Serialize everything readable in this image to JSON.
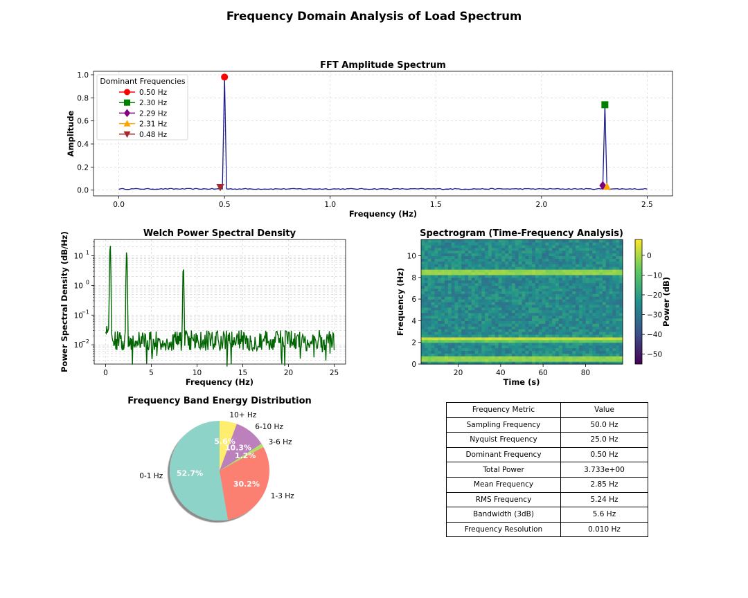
{
  "suptitle": "Frequency Domain Analysis of Load Spectrum",
  "colors": {
    "fft_line": "#1a1a8c",
    "psd_line": "#006400",
    "pie": [
      "#8dd3c7",
      "#fb8072",
      "#b3de69",
      "#bc80bd",
      "#ffed6f"
    ]
  },
  "chart_data": [
    {
      "id": "fft",
      "type": "line",
      "title": "FFT Amplitude Spectrum",
      "xlabel": "Frequency (Hz)",
      "ylabel": "Amplitude",
      "xlim": [
        -0.12,
        2.62
      ],
      "ylim": [
        -0.05,
        1.03
      ],
      "xticks": [
        0.0,
        0.5,
        1.0,
        1.5,
        2.0,
        2.5
      ],
      "xtick_labels": [
        "0.0",
        "0.5",
        "1.0",
        "1.5",
        "2.0",
        "2.5"
      ],
      "yticks": [
        0.0,
        0.2,
        0.4,
        0.6,
        0.8,
        1.0
      ],
      "ytick_labels": [
        "0.0",
        "0.2",
        "0.4",
        "0.6",
        "0.8",
        "1.0"
      ],
      "noise_level": 0.01,
      "peaks": [
        {
          "f": 0.5,
          "a": 0.98
        },
        {
          "f": 2.3,
          "a": 0.74
        }
      ],
      "legend_title": "Dominant Frequencies",
      "markers": [
        {
          "label": "0.50 Hz",
          "f": 0.5,
          "a": 0.98,
          "color": "#ff0000",
          "shape": "circle"
        },
        {
          "label": "2.30 Hz",
          "f": 2.3,
          "a": 0.74,
          "color": "#008000",
          "shape": "square"
        },
        {
          "label": "2.29 Hz",
          "f": 2.29,
          "a": 0.04,
          "color": "#800080",
          "shape": "diamond"
        },
        {
          "label": "2.31 Hz",
          "f": 2.31,
          "a": 0.03,
          "color": "#ffa500",
          "shape": "triangle-up"
        },
        {
          "label": "0.48 Hz",
          "f": 0.48,
          "a": 0.025,
          "color": "#a52a2a",
          "shape": "triangle-down"
        }
      ]
    },
    {
      "id": "welch",
      "type": "line",
      "title": "Welch Power Spectral Density",
      "xlabel": "Frequency (Hz)",
      "ylabel": "Power Spectral Density (dB/Hz)",
      "yscale": "log",
      "xlim": [
        -1.25,
        26.25
      ],
      "ylim_log10": [
        -2.65,
        1.55
      ],
      "xticks": [
        0,
        5,
        10,
        15,
        20,
        25
      ],
      "xtick_labels": [
        "0",
        "5",
        "10",
        "15",
        "20",
        "25"
      ],
      "yticks_log10": [
        -2,
        -1,
        0,
        1
      ],
      "ytick_mantissa": "10",
      "ytick_exponents": [
        "−2",
        "−1",
        "0",
        "1"
      ],
      "noise_level": 0.014,
      "peaks": [
        {
          "f": 0.5,
          "v": 25
        },
        {
          "f": 2.3,
          "v": 15
        },
        {
          "f": 8.5,
          "v": 4.5
        }
      ]
    },
    {
      "id": "spectrogram",
      "type": "heatmap",
      "title": "Spectrogram (Time-Frequency Analysis)",
      "xlabel": "Time (s)",
      "ylabel": "Frequency (Hz)",
      "xlim": [
        2.5,
        97.5
      ],
      "ylim": [
        0,
        11.5
      ],
      "xticks": [
        20,
        40,
        60,
        80
      ],
      "xtick_labels": [
        "20",
        "40",
        "60",
        "80"
      ],
      "yticks": [
        0,
        2,
        4,
        6,
        8,
        10
      ],
      "ytick_labels": [
        "0",
        "2",
        "4",
        "6",
        "8",
        "10"
      ],
      "bands_hz": [
        0.5,
        2.3,
        8.5
      ],
      "colorbar_label": "Power (dB)",
      "colorbar_range": [
        -55,
        8
      ],
      "colorbar_ticks": [
        0,
        -10,
        -20,
        -30,
        -40,
        -50
      ],
      "colorbar_tick_labels": [
        "0",
        "−10",
        "−20",
        "−30",
        "−40",
        "−50"
      ]
    },
    {
      "id": "bands",
      "type": "pie",
      "title": "Frequency Band Energy Distribution",
      "labels": [
        "0-1 Hz",
        "1-3 Hz",
        "3-6 Hz",
        "6-10 Hz",
        "10+ Hz"
      ],
      "values": [
        52.7,
        30.2,
        1.2,
        10.3,
        5.6
      ],
      "pct_labels": [
        "52.7%",
        "30.2%",
        "1.2%",
        "10.3%",
        "5.6%"
      ]
    }
  ],
  "metrics_table": {
    "header": [
      "Frequency Metric",
      "Value"
    ],
    "rows": [
      [
        "Sampling Frequency",
        "50.0 Hz"
      ],
      [
        "Nyquist Frequency",
        "25.0 Hz"
      ],
      [
        "Dominant Frequency",
        "0.50 Hz"
      ],
      [
        "Total Power",
        "3.733e+00"
      ],
      [
        "Mean Frequency",
        "2.85 Hz"
      ],
      [
        "RMS Frequency",
        "5.24 Hz"
      ],
      [
        "Bandwidth (3dB)",
        "5.6 Hz"
      ],
      [
        "Frequency Resolution",
        "0.010 Hz"
      ]
    ]
  }
}
